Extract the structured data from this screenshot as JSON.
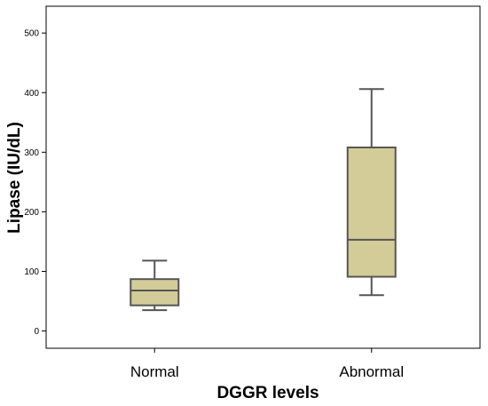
{
  "chart_data": {
    "type": "boxplot",
    "xlabel": "DGGR levels",
    "ylabel": "Lipase (IU/dL)",
    "categories": [
      "Normal",
      "Abnormal"
    ],
    "yticks": [
      0,
      100,
      200,
      300,
      400,
      500
    ],
    "ylim": [
      -29,
      545
    ],
    "grid": false,
    "box_color": "#d4cc98",
    "line_color": "#555555",
    "boxes": [
      {
        "category": "Normal",
        "whisker_low": 35,
        "q1": 43,
        "median": 68,
        "q3": 87,
        "whisker_high": 118
      },
      {
        "category": "Abnormal",
        "whisker_low": 60,
        "q1": 91,
        "median": 153,
        "q3": 308,
        "whisker_high": 406
      }
    ]
  }
}
